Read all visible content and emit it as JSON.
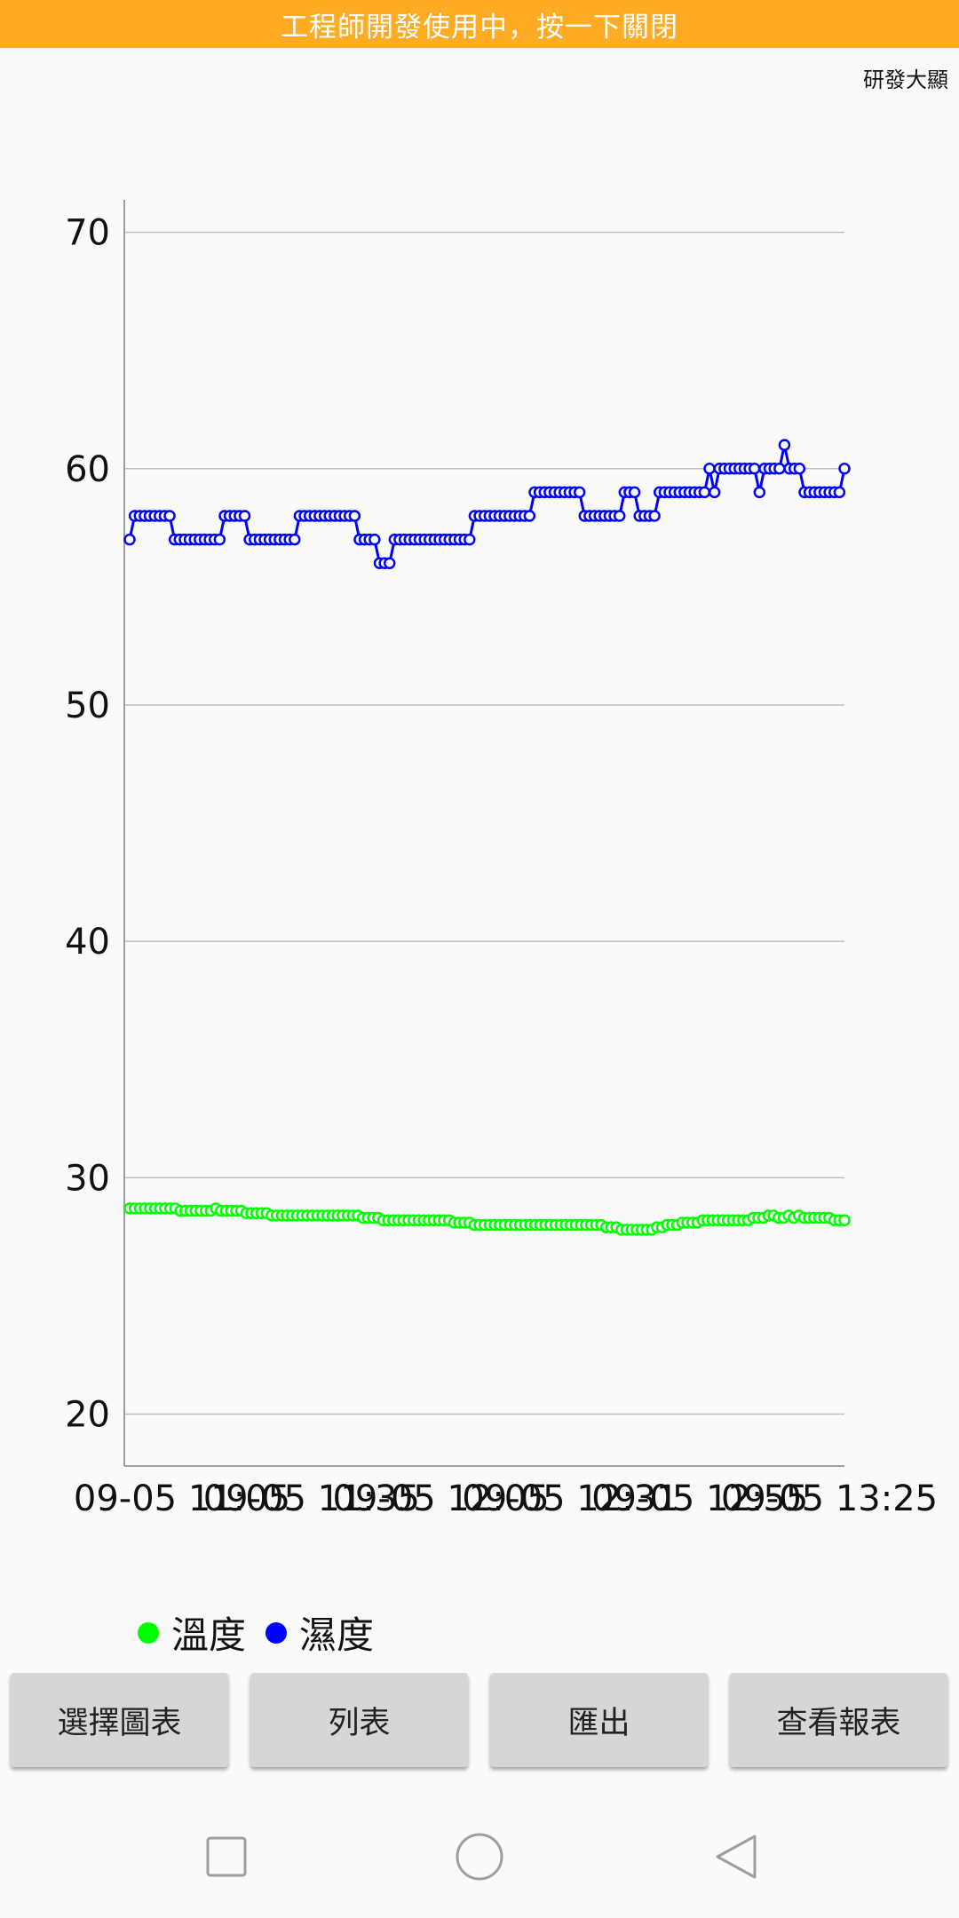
{
  "banner": {
    "text": "工程師開發使用中，按一下關閉",
    "color": "#FFAB23"
  },
  "corner_label": "研發大顯",
  "chart_data": {
    "type": "line",
    "x_tick_labels": [
      "09-05 11:05",
      "09-05 11:35",
      "09-05 12:05",
      "09-05 12:31",
      "09-05 12:55",
      "09-05 13:25"
    ],
    "y_ticks": [
      20,
      30,
      40,
      50,
      60,
      70
    ],
    "ylim": [
      17.8,
      71
    ],
    "grid": true,
    "legend_position": "bottom-left",
    "series": [
      {
        "name": "溫度",
        "color": "#00FF00",
        "values": [
          28.7,
          28.7,
          28.7,
          28.7,
          28.7,
          28.7,
          28.7,
          28.7,
          28.7,
          28.7,
          28.6,
          28.6,
          28.6,
          28.6,
          28.6,
          28.6,
          28.6,
          28.7,
          28.6,
          28.6,
          28.6,
          28.6,
          28.6,
          28.5,
          28.5,
          28.5,
          28.5,
          28.5,
          28.4,
          28.4,
          28.4,
          28.4,
          28.4,
          28.4,
          28.4,
          28.4,
          28.4,
          28.4,
          28.4,
          28.4,
          28.4,
          28.4,
          28.4,
          28.4,
          28.4,
          28.4,
          28.3,
          28.3,
          28.3,
          28.3,
          28.2,
          28.2,
          28.2,
          28.2,
          28.2,
          28.2,
          28.2,
          28.2,
          28.2,
          28.2,
          28.2,
          28.2,
          28.2,
          28.2,
          28.1,
          28.1,
          28.1,
          28.1,
          28.0,
          28.0,
          28.0,
          28.0,
          28.0,
          28.0,
          28.0,
          28.0,
          28.0,
          28.0,
          28.0,
          28.0,
          28.0,
          28.0,
          28.0,
          28.0,
          28.0,
          28.0,
          28.0,
          28.0,
          28.0,
          28.0,
          28.0,
          28.0,
          28.0,
          28.0,
          27.9,
          27.9,
          27.9,
          27.8,
          27.8,
          27.8,
          27.8,
          27.8,
          27.8,
          27.8,
          27.9,
          27.9,
          28.0,
          28.0,
          28.0,
          28.1,
          28.1,
          28.1,
          28.1,
          28.2,
          28.2,
          28.2,
          28.2,
          28.2,
          28.2,
          28.2,
          28.2,
          28.2,
          28.2,
          28.3,
          28.3,
          28.3,
          28.4,
          28.4,
          28.3,
          28.3,
          28.4,
          28.3,
          28.4,
          28.3,
          28.3,
          28.3,
          28.3,
          28.3,
          28.3,
          28.2,
          28.2,
          28.2
        ]
      },
      {
        "name": "濕度",
        "color": "#0000FF",
        "values": [
          57,
          58,
          58,
          58,
          58,
          58,
          58,
          58,
          58,
          57,
          57,
          57,
          57,
          57,
          57,
          57,
          57,
          57,
          57,
          58,
          58,
          58,
          58,
          58,
          57,
          57,
          57,
          57,
          57,
          57,
          57,
          57,
          57,
          57,
          58,
          58,
          58,
          58,
          58,
          58,
          58,
          58,
          58,
          58,
          58,
          58,
          57,
          57,
          57,
          57,
          56,
          56,
          56,
          57,
          57,
          57,
          57,
          57,
          57,
          57,
          57,
          57,
          57,
          57,
          57,
          57,
          57,
          57,
          57,
          58,
          58,
          58,
          58,
          58,
          58,
          58,
          58,
          58,
          58,
          58,
          58,
          59,
          59,
          59,
          59,
          59,
          59,
          59,
          59,
          59,
          59,
          58,
          58,
          58,
          58,
          58,
          58,
          58,
          58,
          59,
          59,
          59,
          58,
          58,
          58,
          58,
          59,
          59,
          59,
          59,
          59,
          59,
          59,
          59,
          59,
          59,
          60,
          59,
          60,
          60,
          60,
          60,
          60,
          60,
          60,
          60,
          59,
          60,
          60,
          60,
          60,
          61,
          60,
          60,
          60,
          59,
          59,
          59,
          59,
          59,
          59,
          59,
          59,
          60
        ]
      }
    ]
  },
  "buttons": [
    "選擇圖表",
    "列表",
    "匯出",
    "查看報表"
  ],
  "nav": {
    "recents": "square-icon",
    "home": "circle-icon",
    "back": "triangle-icon"
  }
}
